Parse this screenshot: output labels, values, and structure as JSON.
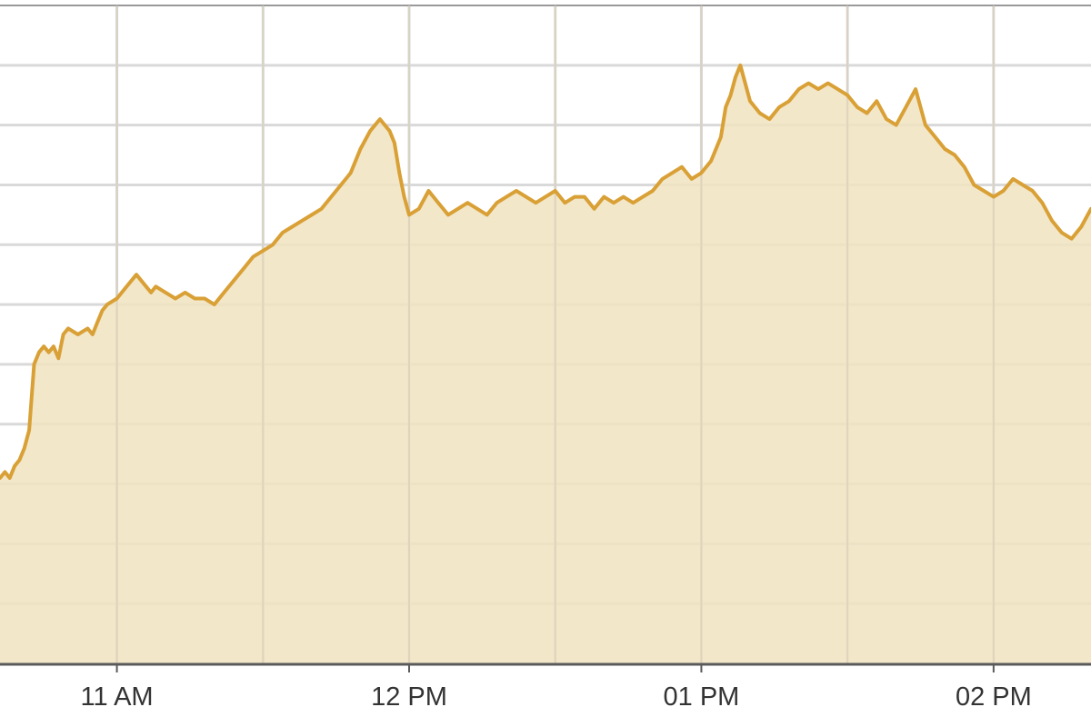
{
  "chart_data": {
    "type": "area",
    "title": "",
    "xlabel": "",
    "ylabel": "",
    "x_tick_labels": [
      {
        "x": 660,
        "label": "11 AM"
      },
      {
        "x": 720,
        "label": "12 PM"
      },
      {
        "x": 780,
        "label": "01 PM"
      },
      {
        "x": 840,
        "label": "02 PM"
      }
    ],
    "x_unit": "minutes since midnight",
    "xlim": [
      636,
      860
    ],
    "ylim": [
      0,
      11
    ],
    "y_tick_labels_visible": false,
    "grid": true,
    "series": [
      {
        "x": [
          636,
          637,
          638,
          639,
          640,
          641,
          642,
          643,
          644,
          645,
          646,
          647,
          648,
          649,
          650,
          652,
          654,
          655,
          656,
          657,
          658,
          660,
          662,
          664,
          665,
          666,
          667,
          668,
          670,
          672,
          674,
          676,
          678,
          680,
          682,
          684,
          686,
          688,
          690,
          692,
          694,
          696,
          698,
          700,
          702,
          704,
          706,
          708,
          710,
          712,
          714,
          716,
          717,
          718,
          719,
          720,
          722,
          724,
          726,
          728,
          730,
          732,
          734,
          736,
          738,
          740,
          742,
          744,
          746,
          748,
          750,
          752,
          754,
          756,
          758,
          760,
          762,
          764,
          766,
          768,
          770,
          772,
          774,
          776,
          778,
          780,
          782,
          784,
          785,
          786,
          787,
          788,
          790,
          792,
          794,
          796,
          798,
          800,
          802,
          804,
          806,
          808,
          810,
          812,
          814,
          816,
          818,
          820,
          822,
          824,
          826,
          828,
          830,
          832,
          834,
          836,
          838,
          840,
          842,
          844,
          846,
          848,
          850,
          852,
          854,
          856,
          858,
          860
        ],
        "values": [
          3.1,
          3.2,
          3.1,
          3.3,
          3.4,
          3.6,
          3.9,
          5.0,
          5.2,
          5.3,
          5.2,
          5.3,
          5.1,
          5.5,
          5.6,
          5.5,
          5.6,
          5.5,
          5.7,
          5.9,
          6.0,
          6.1,
          6.3,
          6.5,
          6.4,
          6.3,
          6.2,
          6.3,
          6.2,
          6.1,
          6.2,
          6.1,
          6.1,
          6.0,
          6.2,
          6.4,
          6.6,
          6.8,
          6.9,
          7.0,
          7.2,
          7.3,
          7.4,
          7.5,
          7.6,
          7.8,
          8.0,
          8.2,
          8.6,
          8.9,
          9.1,
          8.9,
          8.7,
          8.2,
          7.8,
          7.5,
          7.6,
          7.9,
          7.7,
          7.5,
          7.6,
          7.7,
          7.6,
          7.5,
          7.7,
          7.8,
          7.9,
          7.8,
          7.7,
          7.8,
          7.9,
          7.7,
          7.8,
          7.8,
          7.6,
          7.8,
          7.7,
          7.8,
          7.7,
          7.8,
          7.9,
          8.1,
          8.2,
          8.3,
          8.1,
          8.2,
          8.4,
          8.8,
          9.3,
          9.5,
          9.8,
          10.0,
          9.4,
          9.2,
          9.1,
          9.3,
          9.4,
          9.6,
          9.7,
          9.6,
          9.7,
          9.6,
          9.5,
          9.3,
          9.2,
          9.4,
          9.1,
          9.0,
          9.3,
          9.6,
          9.0,
          8.8,
          8.6,
          8.5,
          8.3,
          8.0,
          7.9,
          7.8,
          7.9,
          8.1,
          8.0,
          7.9,
          7.7,
          7.4,
          7.2,
          7.1,
          7.3,
          7.6
        ]
      }
    ],
    "colors": {
      "line": "#d9a036",
      "fill": "#f1e3c1",
      "grid": "#d9d9d9",
      "axis": "#5a5a5a",
      "text": "#333333"
    }
  }
}
